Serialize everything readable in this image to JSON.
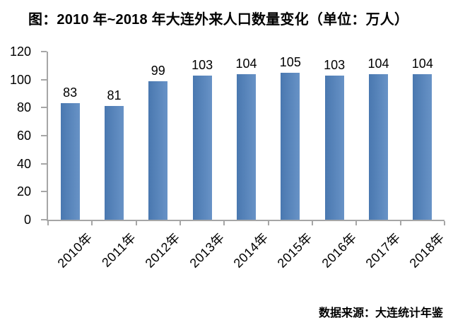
{
  "source": "数据来源：大连统计年鉴",
  "chart_data": {
    "type": "bar",
    "title": "图：2010 年~2018 年大连外来人口数量变化（单位：万人）",
    "categories": [
      "2010年",
      "2011年",
      "2012年",
      "2013年",
      "2014年",
      "2015年",
      "2016年",
      "2017年",
      "2018年"
    ],
    "values": [
      83,
      81,
      99,
      103,
      104,
      105,
      103,
      104,
      104
    ],
    "xlabel": "",
    "ylabel": "",
    "ylim": [
      0,
      120
    ],
    "yticks": [
      0,
      20,
      40,
      60,
      80,
      100,
      120
    ],
    "grid": false,
    "legend": "none",
    "data_labels": true,
    "bar_color": "#4f81bd",
    "axis_color": "#a6a6a6",
    "text_color": "#000000"
  }
}
